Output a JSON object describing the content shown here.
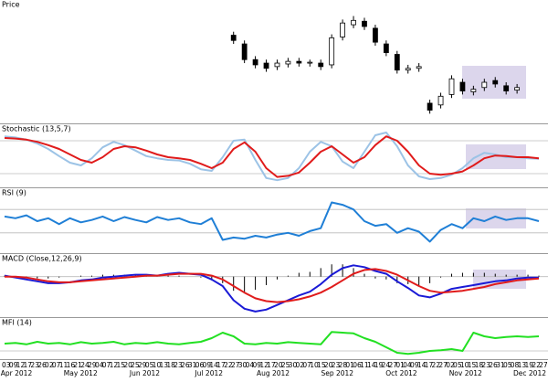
{
  "chart_data": [
    {
      "type": "candlestick",
      "title": "Price",
      "ylim": [
        0,
        130
      ],
      "up_color": "#ffffff",
      "down_color": "#000000",
      "open": [
        null,
        null,
        null,
        null,
        null,
        null,
        null,
        null,
        null,
        null,
        null,
        null,
        null,
        null,
        null,
        null,
        null,
        null,
        null,
        null,
        null,
        98,
        88,
        70,
        66,
        62,
        65,
        68,
        66,
        66,
        64,
        96,
        110,
        114,
        106,
        88,
        76,
        58,
        60,
        20,
        18,
        30,
        44,
        33,
        38,
        46,
        40,
        35,
        null,
        null
      ],
      "high": [
        null,
        null,
        null,
        null,
        null,
        null,
        null,
        null,
        null,
        null,
        null,
        null,
        null,
        null,
        null,
        null,
        null,
        null,
        null,
        null,
        null,
        102,
        92,
        74,
        70,
        70,
        72,
        72,
        70,
        70,
        99,
        116,
        120,
        118,
        110,
        92,
        80,
        64,
        66,
        24,
        32,
        52,
        48,
        40,
        48,
        50,
        44,
        42,
        null,
        null
      ],
      "low": [
        null,
        null,
        null,
        null,
        null,
        null,
        null,
        null,
        null,
        null,
        null,
        null,
        null,
        null,
        null,
        null,
        null,
        null,
        null,
        null,
        null,
        88,
        66,
        60,
        56,
        58,
        61,
        62,
        62,
        58,
        60,
        92,
        106,
        104,
        86,
        74,
        54,
        54,
        56,
        8,
        14,
        26,
        30,
        29,
        34,
        38,
        30,
        31,
        null,
        null
      ],
      "close": [
        null,
        null,
        null,
        null,
        null,
        null,
        null,
        null,
        null,
        null,
        null,
        null,
        null,
        null,
        null,
        null,
        null,
        null,
        null,
        null,
        null,
        92,
        70,
        64,
        60,
        66,
        68,
        66,
        67,
        62,
        95,
        112,
        115,
        108,
        90,
        78,
        58,
        60,
        62,
        12,
        28,
        48,
        34,
        36,
        44,
        42,
        34,
        38,
        null,
        null
      ]
    },
    {
      "type": "line",
      "title": "Stochastic (13,5,7)",
      "ylim": [
        0,
        100
      ],
      "hlines": [
        80,
        20
      ],
      "series": [
        {
          "color": "#9cc3e6",
          "values": [
            88,
            86,
            82,
            75,
            65,
            52,
            40,
            35,
            48,
            68,
            78,
            72,
            62,
            52,
            48,
            45,
            44,
            38,
            28,
            25,
            50,
            80,
            82,
            45,
            12,
            8,
            12,
            30,
            60,
            78,
            70,
            42,
            30,
            60,
            90,
            95,
            70,
            35,
            15,
            10,
            12,
            18,
            30,
            48,
            58,
            55,
            50,
            50,
            48,
            47
          ]
        },
        {
          "color": "#e01b1b",
          "values": [
            85,
            84,
            82,
            78,
            72,
            65,
            55,
            45,
            40,
            50,
            65,
            70,
            68,
            62,
            55,
            50,
            48,
            45,
            38,
            30,
            40,
            65,
            77,
            60,
            30,
            14,
            16,
            22,
            40,
            60,
            70,
            55,
            40,
            50,
            72,
            88,
            80,
            60,
            35,
            20,
            18,
            20,
            24,
            35,
            48,
            53,
            52,
            50,
            50,
            48
          ]
        }
      ]
    },
    {
      "type": "line",
      "title": "RSI (9)",
      "ylim": [
        0,
        100
      ],
      "hlines": [
        70,
        30
      ],
      "series": [
        {
          "color": "#1f7fd6",
          "values": [
            58,
            55,
            60,
            50,
            55,
            45,
            55,
            48,
            52,
            58,
            50,
            57,
            52,
            48,
            57,
            52,
            55,
            48,
            45,
            55,
            18,
            22,
            20,
            25,
            22,
            27,
            30,
            25,
            33,
            38,
            82,
            78,
            70,
            50,
            42,
            45,
            30,
            38,
            32,
            15,
            35,
            45,
            38,
            55,
            50,
            58,
            52,
            55,
            55,
            50
          ]
        }
      ]
    },
    {
      "type": "line",
      "title": "MACD (Close,12,26,9)",
      "ylim": [
        -4,
        2
      ],
      "hlines": [
        0
      ],
      "series": [
        {
          "style": "bar",
          "color": "#000000",
          "values": [
            0.1,
            -0.1,
            -0.2,
            -0.2,
            -0.2,
            -0.1,
            0,
            0.1,
            0.1,
            0.2,
            0.2,
            0.2,
            0.2,
            0.1,
            0,
            0.1,
            0.1,
            0,
            -0.1,
            -0.4,
            -0.7,
            -1.5,
            -1.7,
            -1.4,
            -0.9,
            -0.3,
            0.1,
            0.4,
            0.5,
            0.9,
            1.3,
            1.3,
            0.9,
            0.3,
            -0.2,
            -0.3,
            -0.7,
            -0.8,
            -1.0,
            -0.7,
            -0.1,
            0.3,
            0.4,
            0.4,
            0.4,
            0.3,
            0.2,
            0.2,
            0.2,
            0.1
          ]
        },
        {
          "color": "#1a1ad6",
          "values": [
            0.1,
            -0.1,
            -0.3,
            -0.5,
            -0.7,
            -0.7,
            -0.6,
            -0.4,
            -0.3,
            -0.1,
            0,
            0.1,
            0.2,
            0.2,
            0.1,
            0.3,
            0.4,
            0.3,
            0.2,
            -0.3,
            -1.0,
            -2.5,
            -3.4,
            -3.7,
            -3.5,
            -3.0,
            -2.5,
            -2.0,
            -1.6,
            -0.8,
            0.2,
            0.9,
            1.2,
            1.0,
            0.6,
            0.3,
            -0.5,
            -1.2,
            -2.0,
            -2.2,
            -1.8,
            -1.3,
            -1.1,
            -0.9,
            -0.7,
            -0.5,
            -0.4,
            -0.2,
            -0.1,
            -0.1
          ]
        },
        {
          "color": "#e01b1b",
          "values": [
            0,
            0,
            -0.1,
            -0.3,
            -0.5,
            -0.6,
            -0.6,
            -0.5,
            -0.4,
            -0.3,
            -0.2,
            -0.1,
            0,
            0.1,
            0.1,
            0.2,
            0.3,
            0.3,
            0.3,
            0.1,
            -0.3,
            -1.0,
            -1.7,
            -2.3,
            -2.6,
            -2.7,
            -2.6,
            -2.4,
            -2.1,
            -1.7,
            -1.1,
            -0.4,
            0.3,
            0.7,
            0.8,
            0.6,
            0.2,
            -0.4,
            -1.0,
            -1.5,
            -1.7,
            -1.6,
            -1.5,
            -1.3,
            -1.1,
            -0.8,
            -0.6,
            -0.4,
            -0.3,
            -0.2
          ]
        }
      ]
    },
    {
      "type": "line",
      "title": "MFI (14)",
      "ylim": [
        0,
        100
      ],
      "hlines": [
        20
      ],
      "series": [
        {
          "color": "#22e022",
          "values": [
            40,
            42,
            38,
            45,
            40,
            42,
            38,
            44,
            40,
            42,
            45,
            38,
            42,
            40,
            44,
            40,
            38,
            42,
            45,
            55,
            70,
            60,
            40,
            38,
            42,
            40,
            44,
            42,
            40,
            38,
            72,
            70,
            68,
            55,
            45,
            30,
            15,
            12,
            15,
            20,
            22,
            25,
            20,
            70,
            60,
            55,
            58,
            60,
            58,
            60
          ]
        }
      ]
    }
  ],
  "x_axis": {
    "days": [
      "03",
      "09",
      "12",
      "17",
      "23",
      "26",
      "02",
      "07",
      "11",
      "16",
      "21",
      "24",
      "29",
      "04",
      "07",
      "12",
      "15",
      "20",
      "25",
      "29",
      "05",
      "10",
      "13",
      "18",
      "23",
      "26",
      "31",
      "06",
      "09",
      "14",
      "17",
      "22",
      "27",
      "30",
      "04",
      "09",
      "12",
      "17",
      "20",
      "25",
      "30",
      "02",
      "07",
      "10",
      "15",
      "20",
      "23",
      "28",
      "01",
      "06",
      "11",
      "14",
      "19",
      "24",
      "27",
      "01",
      "04",
      "09",
      "14",
      "17",
      "22",
      "27",
      "02",
      "05",
      "10",
      "15",
      "18",
      "23",
      "26",
      "31",
      "05",
      "08",
      "13",
      "19",
      "22",
      "27"
    ],
    "months": [
      "Apr 2012",
      "May 2012",
      "Jun 2012",
      "Jul 2012",
      "Aug 2012",
      "Sep 2012",
      "Oct 2012",
      "Nov 2012",
      "Dec 2012"
    ]
  }
}
